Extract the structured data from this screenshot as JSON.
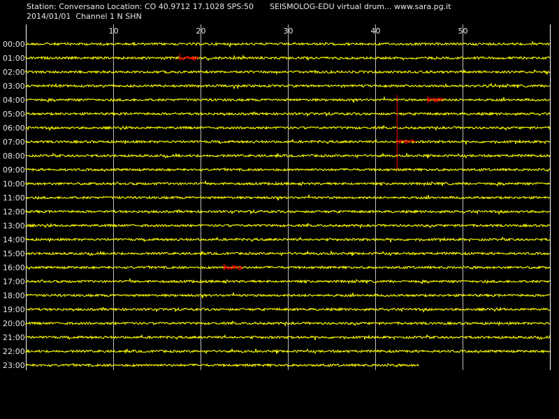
{
  "header": {
    "station_line": "Station: Conversano Location: CO 40.9712 17.1028 SPS:50",
    "date_line": "2014/01/01  Channel 1 N SHN",
    "right_line": "SEISMOLOG-EDU virtual drum... www.sara.pg.it"
  },
  "colors": {
    "background": "#000000",
    "trace": "#ffff00",
    "event": "#ff0000",
    "grid": "#ffffff",
    "text": "#e8e8e8"
  },
  "chart_data": {
    "type": "line",
    "x_ticks": [
      10,
      20,
      30,
      40,
      50
    ],
    "xlim": [
      0,
      60
    ],
    "grid": true,
    "row_labels": [
      "00:00",
      "01:00",
      "02:00",
      "03:00",
      "04:00",
      "05:00",
      "06:00",
      "07:00",
      "08:00",
      "09:00",
      "10:00",
      "11:00",
      "12:00",
      "13:00",
      "14:00",
      "15:00",
      "16:00",
      "17:00",
      "18:00",
      "19:00",
      "20:00",
      "21:00",
      "22:00",
      "23:00"
    ],
    "last_row_end_minute": 45,
    "events": [
      {
        "row": "01:00",
        "start_minute": 17.6,
        "end_minute": 19.8
      },
      {
        "row": "04:00",
        "start_minute": 46.0,
        "end_minute": 47.9
      },
      {
        "row": "07:00",
        "start_minute": 42.5,
        "end_minute": 44.6
      },
      {
        "row": "16:00",
        "start_minute": 22.7,
        "end_minute": 24.7
      }
    ],
    "vertical_marker": {
      "minute": 42.5,
      "from_row": "04:00",
      "to_row": "09:00"
    }
  }
}
